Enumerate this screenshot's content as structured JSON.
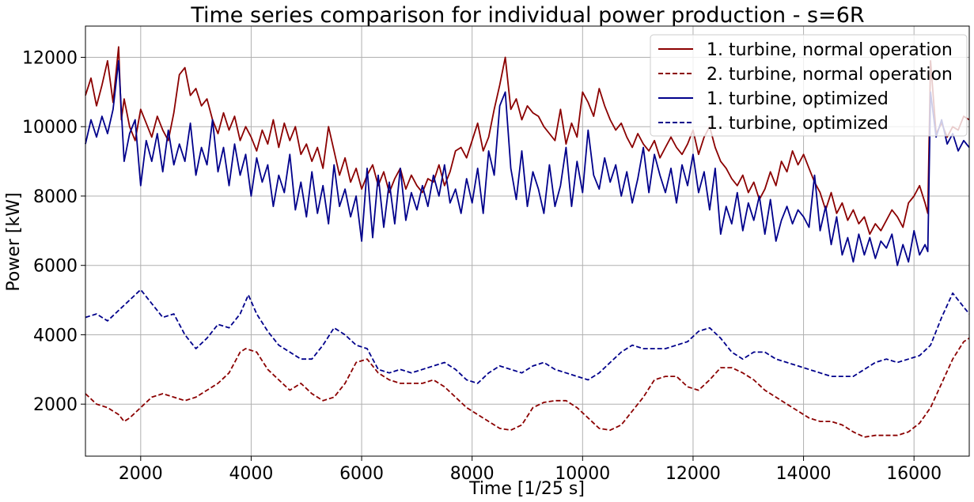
{
  "chart_data": {
    "type": "line",
    "title": "Time series comparison for individual power production - s=6R",
    "xlabel": "Time [1/25 s]",
    "ylabel": "Power [kW]",
    "xlim": [
      1000,
      17000
    ],
    "ylim": [
      500,
      12900
    ],
    "xticks": [
      2000,
      4000,
      6000,
      8000,
      10000,
      12000,
      14000,
      16000
    ],
    "yticks": [
      2000,
      4000,
      6000,
      8000,
      10000,
      12000
    ],
    "grid": true,
    "legend_position": "top-right",
    "series": [
      {
        "name": "1. turbine, normal operation",
        "color": "#8b0000",
        "dash": "solid",
        "x": [
          1000,
          1100,
          1200,
          1300,
          1400,
          1500,
          1600,
          1650,
          1700,
          1800,
          1900,
          2000,
          2100,
          2200,
          2300,
          2400,
          2500,
          2600,
          2700,
          2800,
          2900,
          3000,
          3100,
          3200,
          3300,
          3400,
          3500,
          3600,
          3700,
          3800,
          3900,
          4000,
          4100,
          4200,
          4300,
          4400,
          4500,
          4600,
          4700,
          4800,
          4900,
          5000,
          5100,
          5200,
          5300,
          5400,
          5500,
          5600,
          5700,
          5800,
          5900,
          6000,
          6100,
          6200,
          6300,
          6400,
          6500,
          6600,
          6700,
          6800,
          6900,
          7000,
          7100,
          7200,
          7300,
          7400,
          7500,
          7600,
          7700,
          7800,
          7900,
          8000,
          8100,
          8200,
          8300,
          8400,
          8500,
          8600,
          8700,
          8800,
          8900,
          9000,
          9100,
          9200,
          9300,
          9400,
          9500,
          9600,
          9700,
          9800,
          9900,
          10000,
          10100,
          10200,
          10300,
          10400,
          10500,
          10600,
          10700,
          10800,
          10900,
          11000,
          11100,
          11200,
          11300,
          11400,
          11500,
          11600,
          11700,
          11800,
          11900,
          12000,
          12100,
          12200,
          12300,
          12400,
          12500,
          12600,
          12700,
          12800,
          12900,
          13000,
          13100,
          13200,
          13300,
          13400,
          13500,
          13600,
          13700,
          13800,
          13900,
          14000,
          14100,
          14200,
          14300,
          14400,
          14500,
          14600,
          14700,
          14800,
          14900,
          15000,
          15100,
          15200,
          15300,
          15400,
          15500,
          15600,
          15700,
          15800,
          15900,
          16000,
          16100,
          16200,
          16250,
          16300,
          16400,
          16500,
          16600,
          16700,
          16800,
          16900,
          17000
        ],
        "y": [
          10900,
          11400,
          10600,
          11200,
          11900,
          10700,
          12300,
          10200,
          10800,
          10000,
          9600,
          10500,
          10100,
          9700,
          10300,
          9900,
          9600,
          10400,
          11500,
          11700,
          10900,
          11100,
          10600,
          10800,
          10200,
          9800,
          10400,
          9900,
          10300,
          9600,
          10000,
          9700,
          9300,
          9900,
          9500,
          10200,
          9400,
          10100,
          9600,
          10000,
          9200,
          9500,
          9000,
          9400,
          8800,
          10000,
          9300,
          8600,
          9100,
          8400,
          8800,
          8200,
          8600,
          8900,
          8300,
          8700,
          8100,
          8500,
          8800,
          8200,
          8600,
          8300,
          8100,
          8500,
          8400,
          8900,
          8300,
          8700,
          9300,
          9400,
          9100,
          9600,
          10100,
          9300,
          9700,
          10500,
          11200,
          12000,
          10500,
          10800,
          10200,
          10600,
          10400,
          10300,
          10000,
          9800,
          9600,
          10500,
          9500,
          10100,
          9700,
          11000,
          10700,
          10300,
          11100,
          10600,
          10200,
          9900,
          10100,
          9700,
          9400,
          9800,
          9500,
          9300,
          9600,
          9100,
          9400,
          9700,
          9400,
          9200,
          9500,
          9900,
          9200,
          9700,
          10000,
          9400,
          9000,
          8800,
          8500,
          8300,
          8600,
          8100,
          8400,
          7900,
          8200,
          8700,
          8300,
          9000,
          8700,
          9300,
          8900,
          9200,
          8800,
          8400,
          8100,
          7600,
          8100,
          7500,
          7800,
          7300,
          7600,
          7200,
          7400,
          6900,
          7200,
          7000,
          7300,
          7600,
          7400,
          7100,
          7800,
          8000,
          8300,
          7800,
          7500,
          11900,
          9800,
          10100,
          9700,
          10000,
          9900,
          10300,
          10200
        ]
      },
      {
        "name": "2. turbine, normal operation",
        "color": "#8b0000",
        "dash": "dashed",
        "x": [
          1000,
          1200,
          1400,
          1600,
          1700,
          1800,
          2000,
          2200,
          2400,
          2600,
          2800,
          3000,
          3200,
          3400,
          3600,
          3800,
          3900,
          4100,
          4300,
          4500,
          4700,
          4900,
          5100,
          5300,
          5500,
          5700,
          5900,
          6100,
          6300,
          6500,
          6700,
          6900,
          7100,
          7300,
          7500,
          7700,
          7900,
          8100,
          8300,
          8500,
          8700,
          8900,
          9100,
          9300,
          9500,
          9700,
          9900,
          10100,
          10300,
          10500,
          10700,
          10900,
          11100,
          11300,
          11500,
          11700,
          11900,
          12100,
          12300,
          12500,
          12700,
          12900,
          13100,
          13300,
          13500,
          13700,
          13900,
          14100,
          14300,
          14500,
          14700,
          14900,
          15100,
          15300,
          15500,
          15700,
          15900,
          16100,
          16300,
          16500,
          16700,
          16900,
          17000
        ],
        "y": [
          2300,
          2000,
          1900,
          1700,
          1500,
          1600,
          1900,
          2200,
          2300,
          2200,
          2100,
          2200,
          2400,
          2600,
          2900,
          3500,
          3600,
          3500,
          3000,
          2700,
          2400,
          2600,
          2300,
          2100,
          2200,
          2600,
          3200,
          3300,
          2900,
          2700,
          2600,
          2600,
          2600,
          2700,
          2500,
          2200,
          1900,
          1700,
          1500,
          1300,
          1250,
          1400,
          1900,
          2050,
          2100,
          2100,
          1900,
          1600,
          1300,
          1250,
          1400,
          1800,
          2200,
          2700,
          2800,
          2800,
          2500,
          2400,
          2700,
          3050,
          3050,
          2900,
          2700,
          2400,
          2200,
          2000,
          1800,
          1600,
          1500,
          1500,
          1400,
          1200,
          1050,
          1100,
          1100,
          1100,
          1200,
          1450,
          1900,
          2600,
          3300,
          3800,
          3900
        ]
      },
      {
        "name": "1. turbine, optimized",
        "color": "#00008b",
        "dash": "solid",
        "x": [
          1000,
          1100,
          1200,
          1300,
          1400,
          1500,
          1600,
          1700,
          1800,
          1900,
          2000,
          2100,
          2200,
          2300,
          2400,
          2500,
          2600,
          2700,
          2800,
          2900,
          3000,
          3100,
          3200,
          3300,
          3400,
          3500,
          3600,
          3700,
          3800,
          3900,
          4000,
          4100,
          4200,
          4300,
          4400,
          4500,
          4600,
          4700,
          4800,
          4900,
          5000,
          5100,
          5200,
          5300,
          5400,
          5500,
          5600,
          5700,
          5800,
          5900,
          6000,
          6100,
          6200,
          6300,
          6400,
          6500,
          6600,
          6700,
          6800,
          6900,
          7000,
          7100,
          7200,
          7300,
          7400,
          7500,
          7600,
          7700,
          7800,
          7900,
          8000,
          8100,
          8200,
          8300,
          8400,
          8500,
          8600,
          8700,
          8800,
          8900,
          9000,
          9100,
          9200,
          9300,
          9400,
          9500,
          9600,
          9700,
          9800,
          9900,
          10000,
          10100,
          10200,
          10300,
          10400,
          10500,
          10600,
          10700,
          10800,
          10900,
          11000,
          11100,
          11200,
          11300,
          11400,
          11500,
          11600,
          11700,
          11800,
          11900,
          12000,
          12100,
          12200,
          12300,
          12400,
          12500,
          12600,
          12700,
          12800,
          12900,
          13000,
          13100,
          13200,
          13300,
          13400,
          13500,
          13600,
          13700,
          13800,
          13900,
          14000,
          14100,
          14200,
          14300,
          14400,
          14500,
          14600,
          14700,
          14800,
          14900,
          15000,
          15100,
          15200,
          15300,
          15400,
          15500,
          15600,
          15700,
          15800,
          15900,
          16000,
          16100,
          16200,
          16250,
          16300,
          16400,
          16500,
          16600,
          16700,
          16800,
          16900,
          17000
        ],
        "y": [
          9500,
          10200,
          9700,
          10300,
          9800,
          10500,
          11900,
          9000,
          9800,
          10200,
          8300,
          9600,
          9000,
          9800,
          8700,
          9900,
          8900,
          9500,
          9000,
          10100,
          8600,
          9400,
          8900,
          10200,
          8700,
          9400,
          8300,
          9500,
          8600,
          9200,
          8000,
          9100,
          8400,
          8900,
          7700,
          8600,
          8100,
          9200,
          7600,
          8400,
          7400,
          8700,
          7500,
          8300,
          7200,
          8900,
          7700,
          8200,
          7400,
          8000,
          6700,
          8800,
          6800,
          8600,
          7100,
          8400,
          7200,
          8800,
          7300,
          8100,
          7600,
          8300,
          7700,
          8600,
          8000,
          8900,
          7800,
          8200,
          7500,
          8500,
          7800,
          8800,
          7500,
          9300,
          8600,
          10600,
          11000,
          8800,
          7900,
          9300,
          7700,
          8700,
          8200,
          7500,
          8900,
          7700,
          8300,
          9400,
          7700,
          9000,
          8100,
          9900,
          8600,
          8200,
          9100,
          8400,
          8900,
          8000,
          8700,
          7800,
          8500,
          9400,
          8100,
          9200,
          8600,
          8100,
          8800,
          7800,
          8900,
          8300,
          9200,
          8100,
          8700,
          7600,
          8800,
          6900,
          7700,
          7200,
          8100,
          7000,
          7800,
          7300,
          8000,
          6900,
          7900,
          6700,
          7300,
          7700,
          7200,
          7600,
          7400,
          7100,
          8600,
          7000,
          7700,
          6600,
          7400,
          6300,
          6800,
          6100,
          6900,
          6300,
          6800,
          6200,
          6700,
          6500,
          6900,
          6000,
          6600,
          6100,
          7000,
          6300,
          6600,
          6400,
          11000,
          9700,
          10200,
          9500,
          9800,
          9300,
          9600,
          9400
        ]
      },
      {
        "name": "1. turbine, optimized",
        "color": "#00008b",
        "dash": "dashed",
        "x": [
          1000,
          1200,
          1400,
          1600,
          1800,
          2000,
          2200,
          2400,
          2600,
          2800,
          3000,
          3200,
          3400,
          3600,
          3800,
          3950,
          4100,
          4300,
          4500,
          4700,
          4900,
          5100,
          5300,
          5500,
          5700,
          5900,
          6100,
          6300,
          6500,
          6700,
          6900,
          7100,
          7300,
          7500,
          7700,
          7900,
          8100,
          8300,
          8500,
          8700,
          8900,
          9100,
          9300,
          9500,
          9700,
          9900,
          10100,
          10300,
          10500,
          10700,
          10900,
          11100,
          11300,
          11500,
          11700,
          11900,
          12100,
          12300,
          12500,
          12700,
          12900,
          13100,
          13300,
          13500,
          13700,
          13900,
          14100,
          14300,
          14500,
          14700,
          14900,
          15100,
          15300,
          15500,
          15700,
          15900,
          16100,
          16300,
          16500,
          16700,
          16900,
          17000
        ],
        "y": [
          4500,
          4600,
          4400,
          4700,
          5000,
          5300,
          4900,
          4500,
          4600,
          4000,
          3600,
          3900,
          4300,
          4200,
          4600,
          5150,
          4600,
          4100,
          3700,
          3500,
          3300,
          3300,
          3700,
          4200,
          4000,
          3700,
          3600,
          3000,
          2900,
          3000,
          2900,
          3000,
          3100,
          3200,
          3000,
          2700,
          2600,
          2900,
          3100,
          3000,
          2900,
          3100,
          3200,
          3000,
          2900,
          2800,
          2700,
          2900,
          3200,
          3500,
          3700,
          3600,
          3600,
          3600,
          3700,
          3800,
          4100,
          4200,
          3900,
          3500,
          3300,
          3500,
          3500,
          3300,
          3200,
          3100,
          3000,
          2900,
          2800,
          2800,
          2800,
          3000,
          3200,
          3300,
          3200,
          3300,
          3400,
          3700,
          4500,
          5200,
          4800,
          4600
        ]
      }
    ]
  }
}
